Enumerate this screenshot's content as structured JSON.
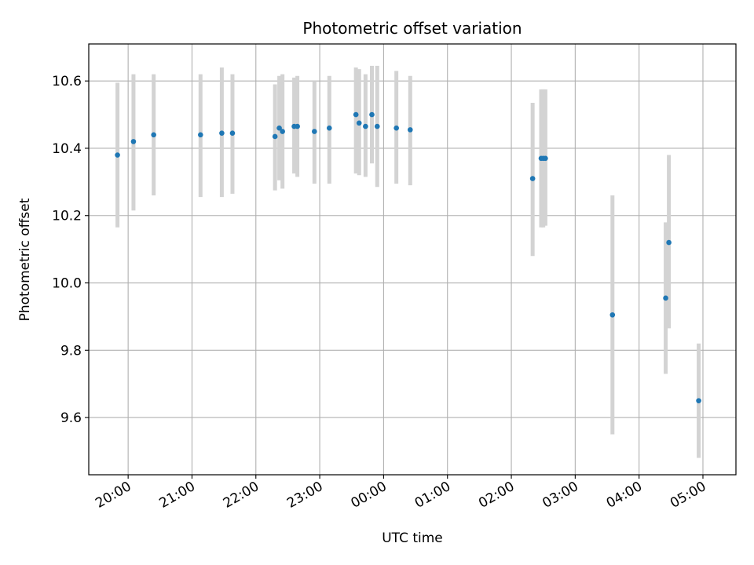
{
  "chart_data": {
    "type": "scatter",
    "title": "Photometric offset variation",
    "xlabel": "UTC time",
    "ylabel": "Photometric offset",
    "x_axis": "time (hours since 20:00 UTC; ticks labeled as clock times)",
    "xlim": [
      "19:23",
      "05:31"
    ],
    "ylim": [
      9.43,
      10.71
    ],
    "x_ticks": [
      "20:00",
      "21:00",
      "22:00",
      "23:00",
      "00:00",
      "01:00",
      "02:00",
      "03:00",
      "04:00",
      "05:00"
    ],
    "y_ticks": [
      "9.6",
      "9.8",
      "10.0",
      "10.2",
      "10.4",
      "10.6"
    ],
    "grid": true,
    "colors": {
      "point": "#1f77b4",
      "errorbar": "#d3d3d3",
      "grid": "#b0b0b0",
      "axes": "#000000"
    },
    "series": [
      {
        "points": [
          {
            "x": "19:50",
            "y": 10.38,
            "lo": 10.165,
            "hi": 10.595
          },
          {
            "x": "20:05",
            "y": 10.42,
            "lo": 10.215,
            "hi": 10.62
          },
          {
            "x": "20:24",
            "y": 10.44,
            "lo": 10.26,
            "hi": 10.62
          },
          {
            "x": "21:08",
            "y": 10.44,
            "lo": 10.255,
            "hi": 10.62
          },
          {
            "x": "21:28",
            "y": 10.445,
            "lo": 10.255,
            "hi": 10.64
          },
          {
            "x": "21:38",
            "y": 10.445,
            "lo": 10.265,
            "hi": 10.62
          },
          {
            "x": "22:18",
            "y": 10.435,
            "lo": 10.275,
            "hi": 10.59
          },
          {
            "x": "22:22",
            "y": 10.46,
            "lo": 10.305,
            "hi": 10.615
          },
          {
            "x": "22:25",
            "y": 10.45,
            "lo": 10.28,
            "hi": 10.62
          },
          {
            "x": "22:36",
            "y": 10.465,
            "lo": 10.325,
            "hi": 10.61
          },
          {
            "x": "22:39",
            "y": 10.465,
            "lo": 10.315,
            "hi": 10.615
          },
          {
            "x": "22:55",
            "y": 10.45,
            "lo": 10.295,
            "hi": 10.6
          },
          {
            "x": "23:09",
            "y": 10.46,
            "lo": 10.295,
            "hi": 10.615
          },
          {
            "x": "23:34",
            "y": 10.5,
            "lo": 10.325,
            "hi": 10.64
          },
          {
            "x": "23:37",
            "y": 10.475,
            "lo": 10.32,
            "hi": 10.635
          },
          {
            "x": "23:43",
            "y": 10.465,
            "lo": 10.315,
            "hi": 10.62
          },
          {
            "x": "23:49",
            "y": 10.5,
            "lo": 10.355,
            "hi": 10.645
          },
          {
            "x": "23:54",
            "y": 10.465,
            "lo": 10.285,
            "hi": 10.645
          },
          {
            "x": "00:12",
            "y": 10.46,
            "lo": 10.295,
            "hi": 10.63
          },
          {
            "x": "00:25",
            "y": 10.455,
            "lo": 10.29,
            "hi": 10.615
          },
          {
            "x": "02:20",
            "y": 10.31,
            "lo": 10.08,
            "hi": 10.535
          },
          {
            "x": "02:28",
            "y": 10.37,
            "lo": 10.165,
            "hi": 10.575
          },
          {
            "x": "02:30",
            "y": 10.37,
            "lo": 10.165,
            "hi": 10.575
          },
          {
            "x": "02:32",
            "y": 10.37,
            "lo": 10.17,
            "hi": 10.575
          },
          {
            "x": "03:35",
            "y": 9.905,
            "lo": 9.55,
            "hi": 10.26
          },
          {
            "x": "04:25",
            "y": 9.955,
            "lo": 9.73,
            "hi": 10.18
          },
          {
            "x": "04:28",
            "y": 10.12,
            "lo": 9.865,
            "hi": 10.38
          },
          {
            "x": "04:56",
            "y": 9.65,
            "lo": 9.48,
            "hi": 9.82
          }
        ]
      }
    ]
  }
}
